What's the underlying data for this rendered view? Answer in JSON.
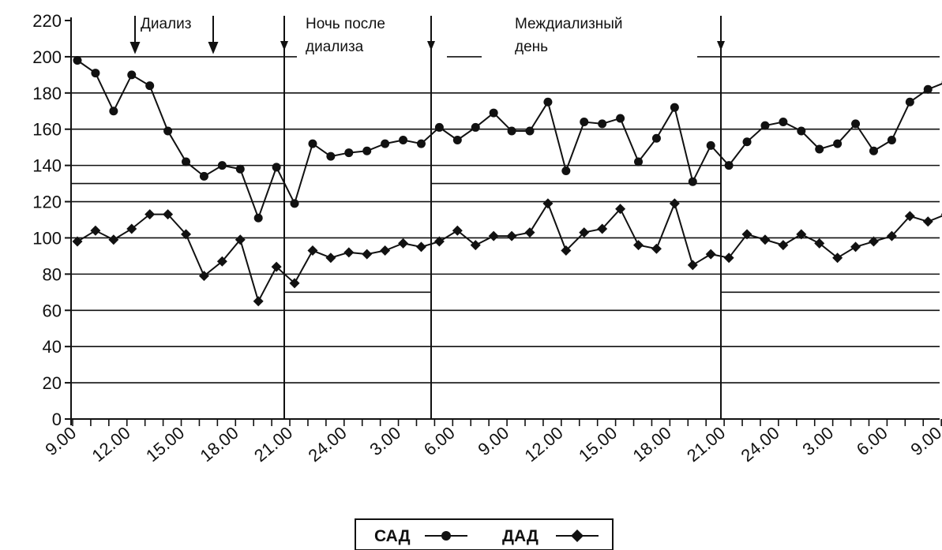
{
  "chart_data": {
    "type": "line",
    "title": "",
    "xlabel": "",
    "ylabel": "",
    "ylim": [
      0,
      220
    ],
    "y_ticks": [
      0,
      20,
      40,
      60,
      80,
      100,
      120,
      140,
      160,
      180,
      200,
      220
    ],
    "x_tick_labels": [
      "9.00",
      "12.00",
      "15.00",
      "18.00",
      "21.00",
      "24.00",
      "3.00",
      "6.00",
      "9.00",
      "12.00",
      "15.00",
      "18.00",
      "21.00",
      "24.00",
      "3.00",
      "6.00",
      "9.00"
    ],
    "grid": true,
    "legend_position": "bottom-center",
    "annotations": [
      "Диализ",
      "Ночь после",
      "диализа",
      "Междиализный",
      "день"
    ],
    "series": [
      {
        "name": "САД",
        "marker": "circle",
        "values": [
          198,
          191,
          170,
          190,
          184,
          159,
          142,
          134,
          140,
          138,
          111,
          139,
          119,
          152,
          145,
          147,
          148,
          152,
          154,
          152,
          161,
          154,
          161,
          169,
          159,
          159,
          175,
          137,
          164,
          163,
          166,
          142,
          155,
          172,
          131,
          151,
          140,
          153,
          162,
          164,
          159,
          149,
          152,
          163,
          148,
          154,
          175,
          182,
          186
        ]
      },
      {
        "name": "ДАД",
        "marker": "diamond",
        "values": [
          98,
          104,
          99,
          105,
          113,
          113,
          102,
          79,
          87,
          99,
          65,
          84,
          75,
          93,
          89,
          92,
          91,
          93,
          97,
          95,
          98,
          104,
          96,
          101,
          101,
          103,
          119,
          93,
          103,
          105,
          116,
          96,
          94,
          119,
          85,
          91,
          89,
          102,
          99,
          96,
          102,
          97,
          89,
          95,
          98,
          101,
          112,
          109,
          113
        ]
      }
    ]
  }
}
